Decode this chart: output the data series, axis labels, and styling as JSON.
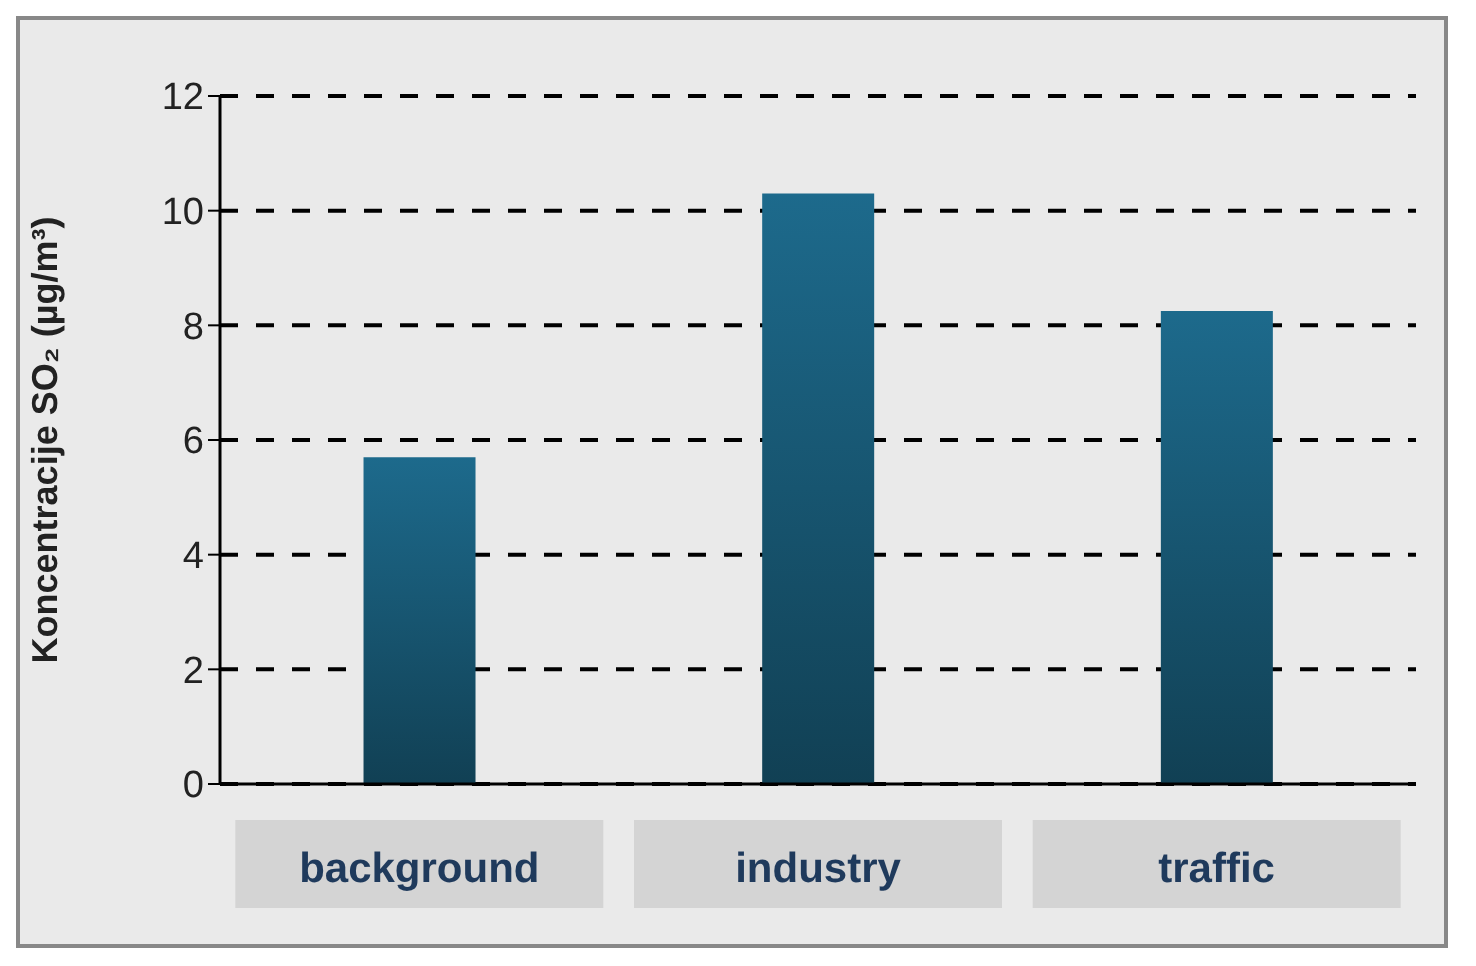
{
  "chart_data": {
    "type": "bar",
    "ylabel": "Koncentracije SO₂ (µg/m³)",
    "categories": [
      "background",
      "industry",
      "traffic"
    ],
    "values": [
      5.7,
      10.3,
      8.25
    ],
    "color": "#1d6a8c",
    "ylim": [
      0,
      12
    ],
    "yticks": [
      0,
      2,
      4,
      6,
      8,
      10,
      12
    ],
    "grid": "y"
  }
}
